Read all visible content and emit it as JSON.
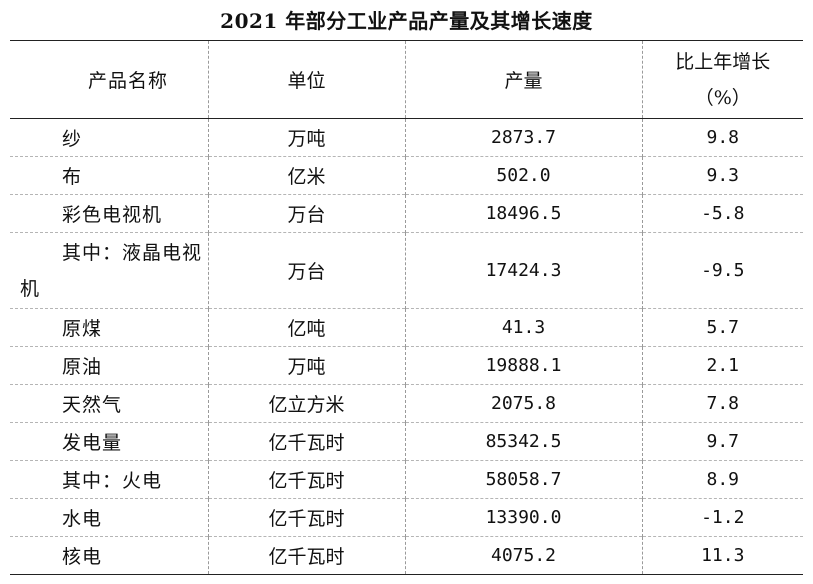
{
  "title": "2021 年部分工业产品产量及其增长速度",
  "headers": {
    "name": "产品名称",
    "unit": "单位",
    "output": "产量",
    "growth_line1": "比上年增长",
    "growth_line2": "（%）"
  },
  "rows": [
    {
      "name": "纱",
      "unit": "万吨",
      "output": "2873.7",
      "growth": "9.8"
    },
    {
      "name": "布",
      "unit": "亿米",
      "output": "502.0",
      "growth": "9.3"
    },
    {
      "name": "彩色电视机",
      "unit": "万台",
      "output": "18496.5",
      "growth": "-5.8"
    },
    {
      "name": "其中：液晶电视机",
      "unit": "万台",
      "output": "17424.3",
      "growth": "-9.5"
    },
    {
      "name": "原煤",
      "unit": "亿吨",
      "output": "41.3",
      "growth": "5.7"
    },
    {
      "name": "原油",
      "unit": "万吨",
      "output": "19888.1",
      "growth": "2.1"
    },
    {
      "name": "天然气",
      "unit": "亿立方米",
      "output": "2075.8",
      "growth": "7.8"
    },
    {
      "name": "发电量",
      "unit": "亿千瓦时",
      "output": "85342.5",
      "growth": "9.7"
    },
    {
      "name": "其中：火电",
      "unit": "亿千瓦时",
      "output": "58058.7",
      "growth": "8.9"
    },
    {
      "name": "水电",
      "unit": "亿千瓦时",
      "output": "13390.0",
      "growth": "-1.2"
    },
    {
      "name": "核电",
      "unit": "亿千瓦时",
      "output": "4075.2",
      "growth": "11.3"
    }
  ]
}
